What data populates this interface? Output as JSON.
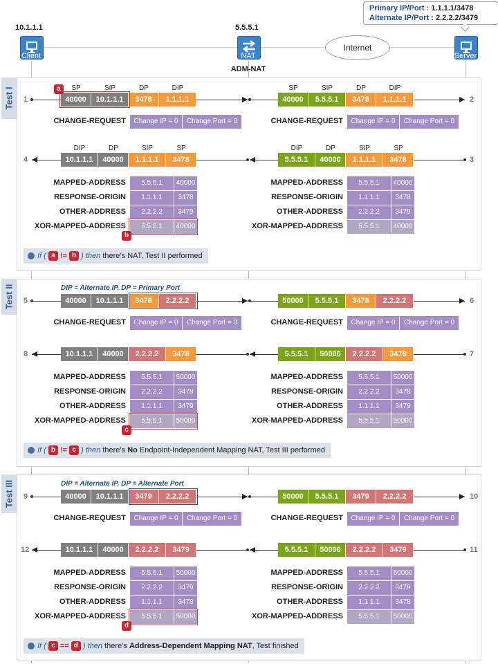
{
  "header": {
    "client_ip": "10.1.1.1",
    "client_label": "Client",
    "nat_ip": "5.5.5.1",
    "nat_label": "NAT",
    "nat_sublabel": "ADM-NAT",
    "internet_label": "Internet",
    "server_label": "Server",
    "callout_primary_key": "Primary IP/Port :",
    "callout_primary_val": "1.1.1.1/3478",
    "callout_alt_key": "Alternate IP/Port :",
    "callout_alt_val": "2.2.2.2/3479"
  },
  "labels": {
    "sp": "SP",
    "sip": "SIP",
    "dp": "DP",
    "dip": "DIP",
    "change_request": "CHANGE-REQUEST",
    "change_ip": "Change IP = 0",
    "change_port": "Change Port = 0",
    "mapped": "MAPPED-ADDRESS",
    "origin": "RESPONSE-ORIGIN",
    "other": "OTHER-ADDRESS",
    "xor": "XOR-MAPPED-ADDRESS"
  },
  "tests": [
    {
      "name": "Test I",
      "note": "",
      "steps": [
        "1",
        "2",
        "3",
        "4"
      ],
      "req_left": [
        "40000",
        "10.1.1.1",
        "3478",
        "1.1.1.1"
      ],
      "req_right": [
        "40000",
        "5.5.5.1",
        "3478",
        "1.1.1.1"
      ],
      "resp_left": [
        "10.1.1.1",
        "40000",
        "1.1.1.1",
        "3478"
      ],
      "resp_right": [
        "5.5.5.1",
        "40000",
        "1.1.1.1",
        "3478"
      ],
      "mapped": [
        "5.5.5.1",
        "40000"
      ],
      "origin": [
        "1.1.1.1",
        "3478"
      ],
      "other": [
        "2.2.2.2",
        "3479"
      ],
      "xor": [
        "5.5.5.1",
        "40000"
      ],
      "badge_top": "a",
      "badge_bottom": "b",
      "cond_if": "If (",
      "cond_a": "a",
      "cond_op": "!=",
      "cond_b": "b",
      "cond_then": ") then",
      "cond_text": "there’s NAT, Test II performed",
      "cond_bold": ""
    },
    {
      "name": "Test II",
      "note": "DIP = Alternate IP, DP = Primary Port",
      "steps": [
        "5",
        "6",
        "7",
        "8"
      ],
      "req_left": [
        "40000",
        "10.1.1.1",
        "3478",
        "2.2.2.2"
      ],
      "req_right": [
        "50000",
        "5.5.5.1",
        "3478",
        "2.2.2.2"
      ],
      "resp_left": [
        "10.1.1.1",
        "40000",
        "2.2.2.2",
        "3478"
      ],
      "resp_right": [
        "5.5.5.1",
        "50000",
        "2.2.2.2",
        "3478"
      ],
      "mapped": [
        "5.5.5.1",
        "50000"
      ],
      "origin": [
        "2.2.2.2",
        "3478"
      ],
      "other": [
        "1.1.1.1",
        "3479"
      ],
      "xor": [
        "5.5.5.1",
        "50000"
      ],
      "badge_top": "",
      "badge_bottom": "c",
      "cond_if": "If (",
      "cond_a": "b",
      "cond_op": "!=",
      "cond_b": "c",
      "cond_then": ") then",
      "cond_text": "there’s",
      "cond_bold": "No",
      "cond_tail": "Endpoint-Independent Mapping NAT, Test III performed"
    },
    {
      "name": "Test III",
      "note": "DIP = Alternate IP, DP = Alternate Port",
      "steps": [
        "9",
        "10",
        "11",
        "12"
      ],
      "req_left": [
        "40000",
        "10.1.1.1",
        "3479",
        "2.2.2.2"
      ],
      "req_right": [
        "50000",
        "5.5.5.1",
        "3479",
        "2.2.2.2"
      ],
      "resp_left": [
        "10.1.1.1",
        "40000",
        "2.2.2.2",
        "3479"
      ],
      "resp_right": [
        "5.5.5.1",
        "50000",
        "2.2.2.2",
        "3479"
      ],
      "mapped": [
        "5.5.5.1",
        "50000"
      ],
      "origin": [
        "2.2.2.2",
        "3479"
      ],
      "other": [
        "1.1.1.1",
        "3478"
      ],
      "xor": [
        "5.5.5.1",
        "50000"
      ],
      "badge_top": "",
      "badge_bottom": "d",
      "cond_if": "If (",
      "cond_a": "c",
      "cond_op": "==",
      "cond_b": "d",
      "cond_then": ") then",
      "cond_text": "there’s",
      "cond_bold": "Address-Dependent Mapping NAT",
      "cond_tail": ", Test finished"
    }
  ],
  "colors": {
    "gray": "#7f7f7f",
    "orange": "#f6993a",
    "green": "#7aa51b",
    "red": "#d27574",
    "purple": "#a28dc6",
    "tab": "#d5dde8",
    "badge": "#cc2431"
  }
}
